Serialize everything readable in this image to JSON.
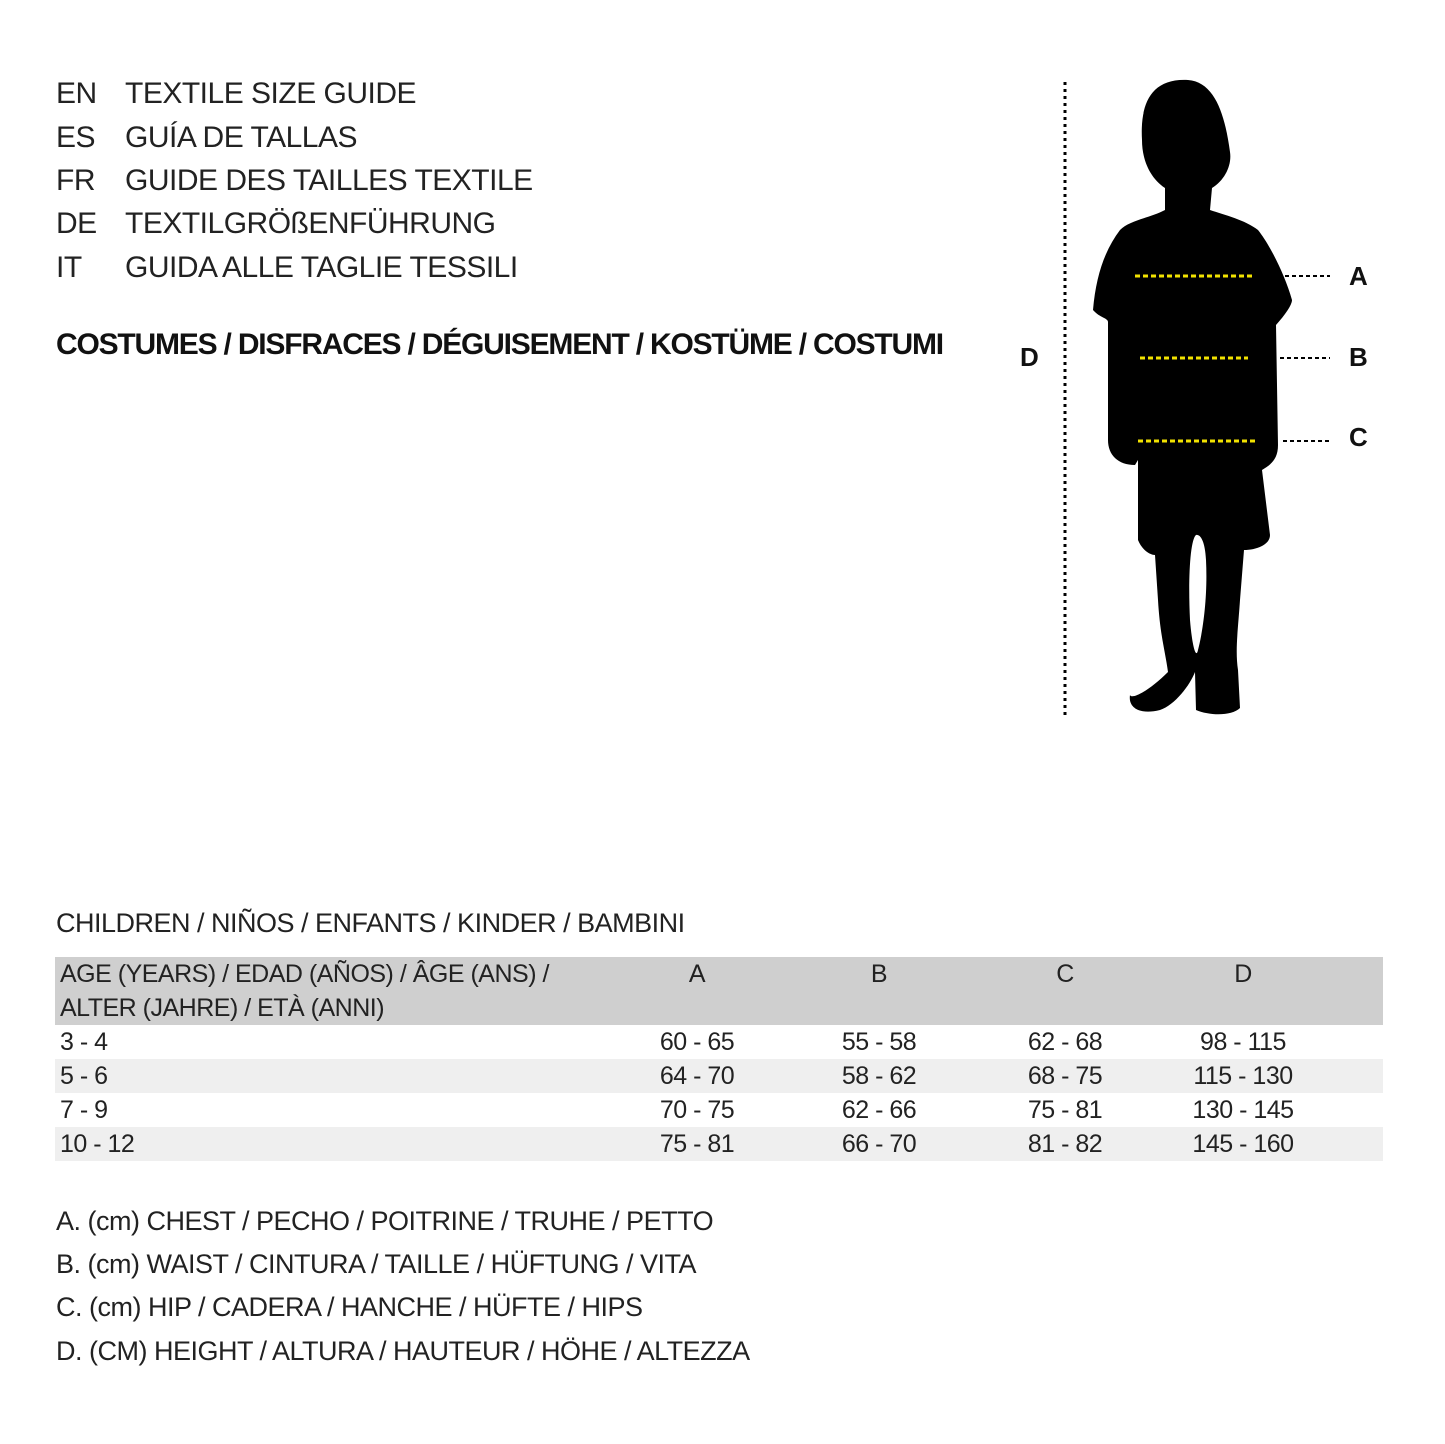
{
  "titles": [
    {
      "code": "EN",
      "text": "TEXTILE SIZE GUIDE"
    },
    {
      "code": "ES",
      "text": "GUÍA DE TALLAS"
    },
    {
      "code": "FR",
      "text": "GUIDE DES TAILLES TEXTILE"
    },
    {
      "code": "DE",
      "text": "TEXTILGRÖßENFÜHRUNG"
    },
    {
      "code": "IT",
      "text": "GUIDA ALLE TAGLIE TESSILI"
    }
  ],
  "category": "COSTUMES / DISFRACES / DÉGUISEMENT / KOSTÜME / COSTUMI",
  "diagram": {
    "labels": {
      "a": "A",
      "b": "B",
      "c": "C",
      "d": "D"
    },
    "icon": "child-silhouette-icon",
    "colors": {
      "silhouette": "#000000",
      "measure_lines": "#f2e200"
    }
  },
  "section_title": "CHILDREN / NIÑOS / ENFANTS / KINDER / BAMBINI",
  "table": {
    "header": {
      "age_line1": "AGE (YEARS) / EDAD (AÑOS) / ÂGE (ANS) /",
      "age_line2": "ALTER (JAHRE) / ETÀ (ANNI)",
      "cols": [
        "A",
        "B",
        "C",
        "D"
      ]
    },
    "rows": [
      {
        "age": "3 - 4",
        "vals": [
          "60 - 65",
          "55 - 58",
          "62 - 68",
          "98 - 115"
        ]
      },
      {
        "age": "5 - 6",
        "vals": [
          "64 - 70",
          "58 - 62",
          "68 - 75",
          "115 - 130"
        ]
      },
      {
        "age": "7 - 9",
        "vals": [
          "70 - 75",
          "62 - 66",
          "75 - 81",
          "130 - 145"
        ]
      },
      {
        "age": "10 - 12",
        "vals": [
          "75 - 81",
          "66 - 70",
          "81 - 82",
          "145 - 160"
        ]
      }
    ],
    "colors": {
      "header_bg": "#cfcfcf",
      "alt_row_bg": "#efefef"
    }
  },
  "legend": [
    "A. (cm) CHEST / PECHO / POITRINE / TRUHE / PETTO",
    "B. (cm) WAIST / CINTURA / TAILLE / HÜFTUNG / VITA",
    "C. (cm) HIP / CADERA / HANCHE / HÜFTE / HIPS",
    "D. (CM) HEIGHT / ALTURA / HAUTEUR / HÖHE / ALTEZZA"
  ]
}
